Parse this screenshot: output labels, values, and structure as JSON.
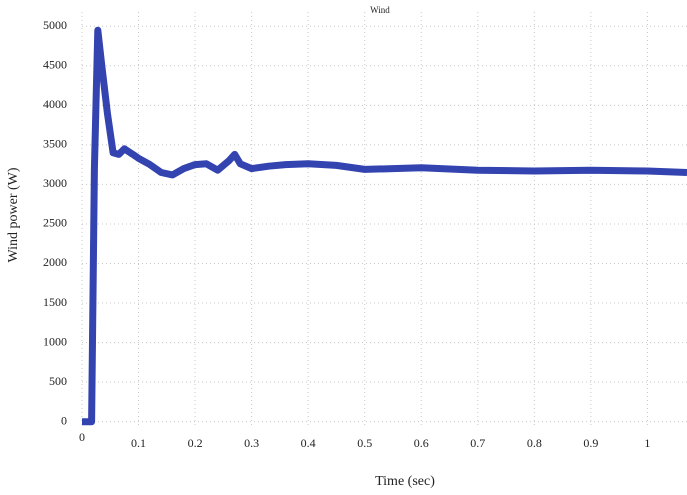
{
  "chart_data": {
    "type": "line",
    "title": "Wind",
    "xlabel": "Time (sec)",
    "ylabel": "Wind power (W)",
    "color": "#3343b0",
    "grid": true,
    "xlim": [
      0,
      1.07
    ],
    "ylim": [
      -80,
      5180
    ],
    "xticks": [
      0,
      0.1,
      0.2,
      0.3,
      0.4,
      0.5,
      0.6,
      0.7,
      0.8,
      0.9,
      1
    ],
    "yticks": [
      0,
      500,
      1000,
      1500,
      2000,
      2500,
      3000,
      3500,
      4000,
      4500,
      5000
    ],
    "x": [
      0,
      0.017,
      0.022,
      0.028,
      0.035,
      0.045,
      0.055,
      0.065,
      0.075,
      0.09,
      0.1,
      0.12,
      0.14,
      0.16,
      0.18,
      0.2,
      0.22,
      0.24,
      0.26,
      0.27,
      0.28,
      0.3,
      0.33,
      0.36,
      0.4,
      0.45,
      0.5,
      0.55,
      0.6,
      0.7,
      0.8,
      0.9,
      1.0,
      1.07
    ],
    "values": [
      0,
      0,
      3200,
      4950,
      4500,
      3900,
      3400,
      3380,
      3450,
      3380,
      3330,
      3250,
      3150,
      3120,
      3200,
      3250,
      3260,
      3180,
      3300,
      3380,
      3260,
      3200,
      3230,
      3250,
      3260,
      3240,
      3190,
      3200,
      3210,
      3180,
      3170,
      3180,
      3170,
      3150
    ]
  }
}
